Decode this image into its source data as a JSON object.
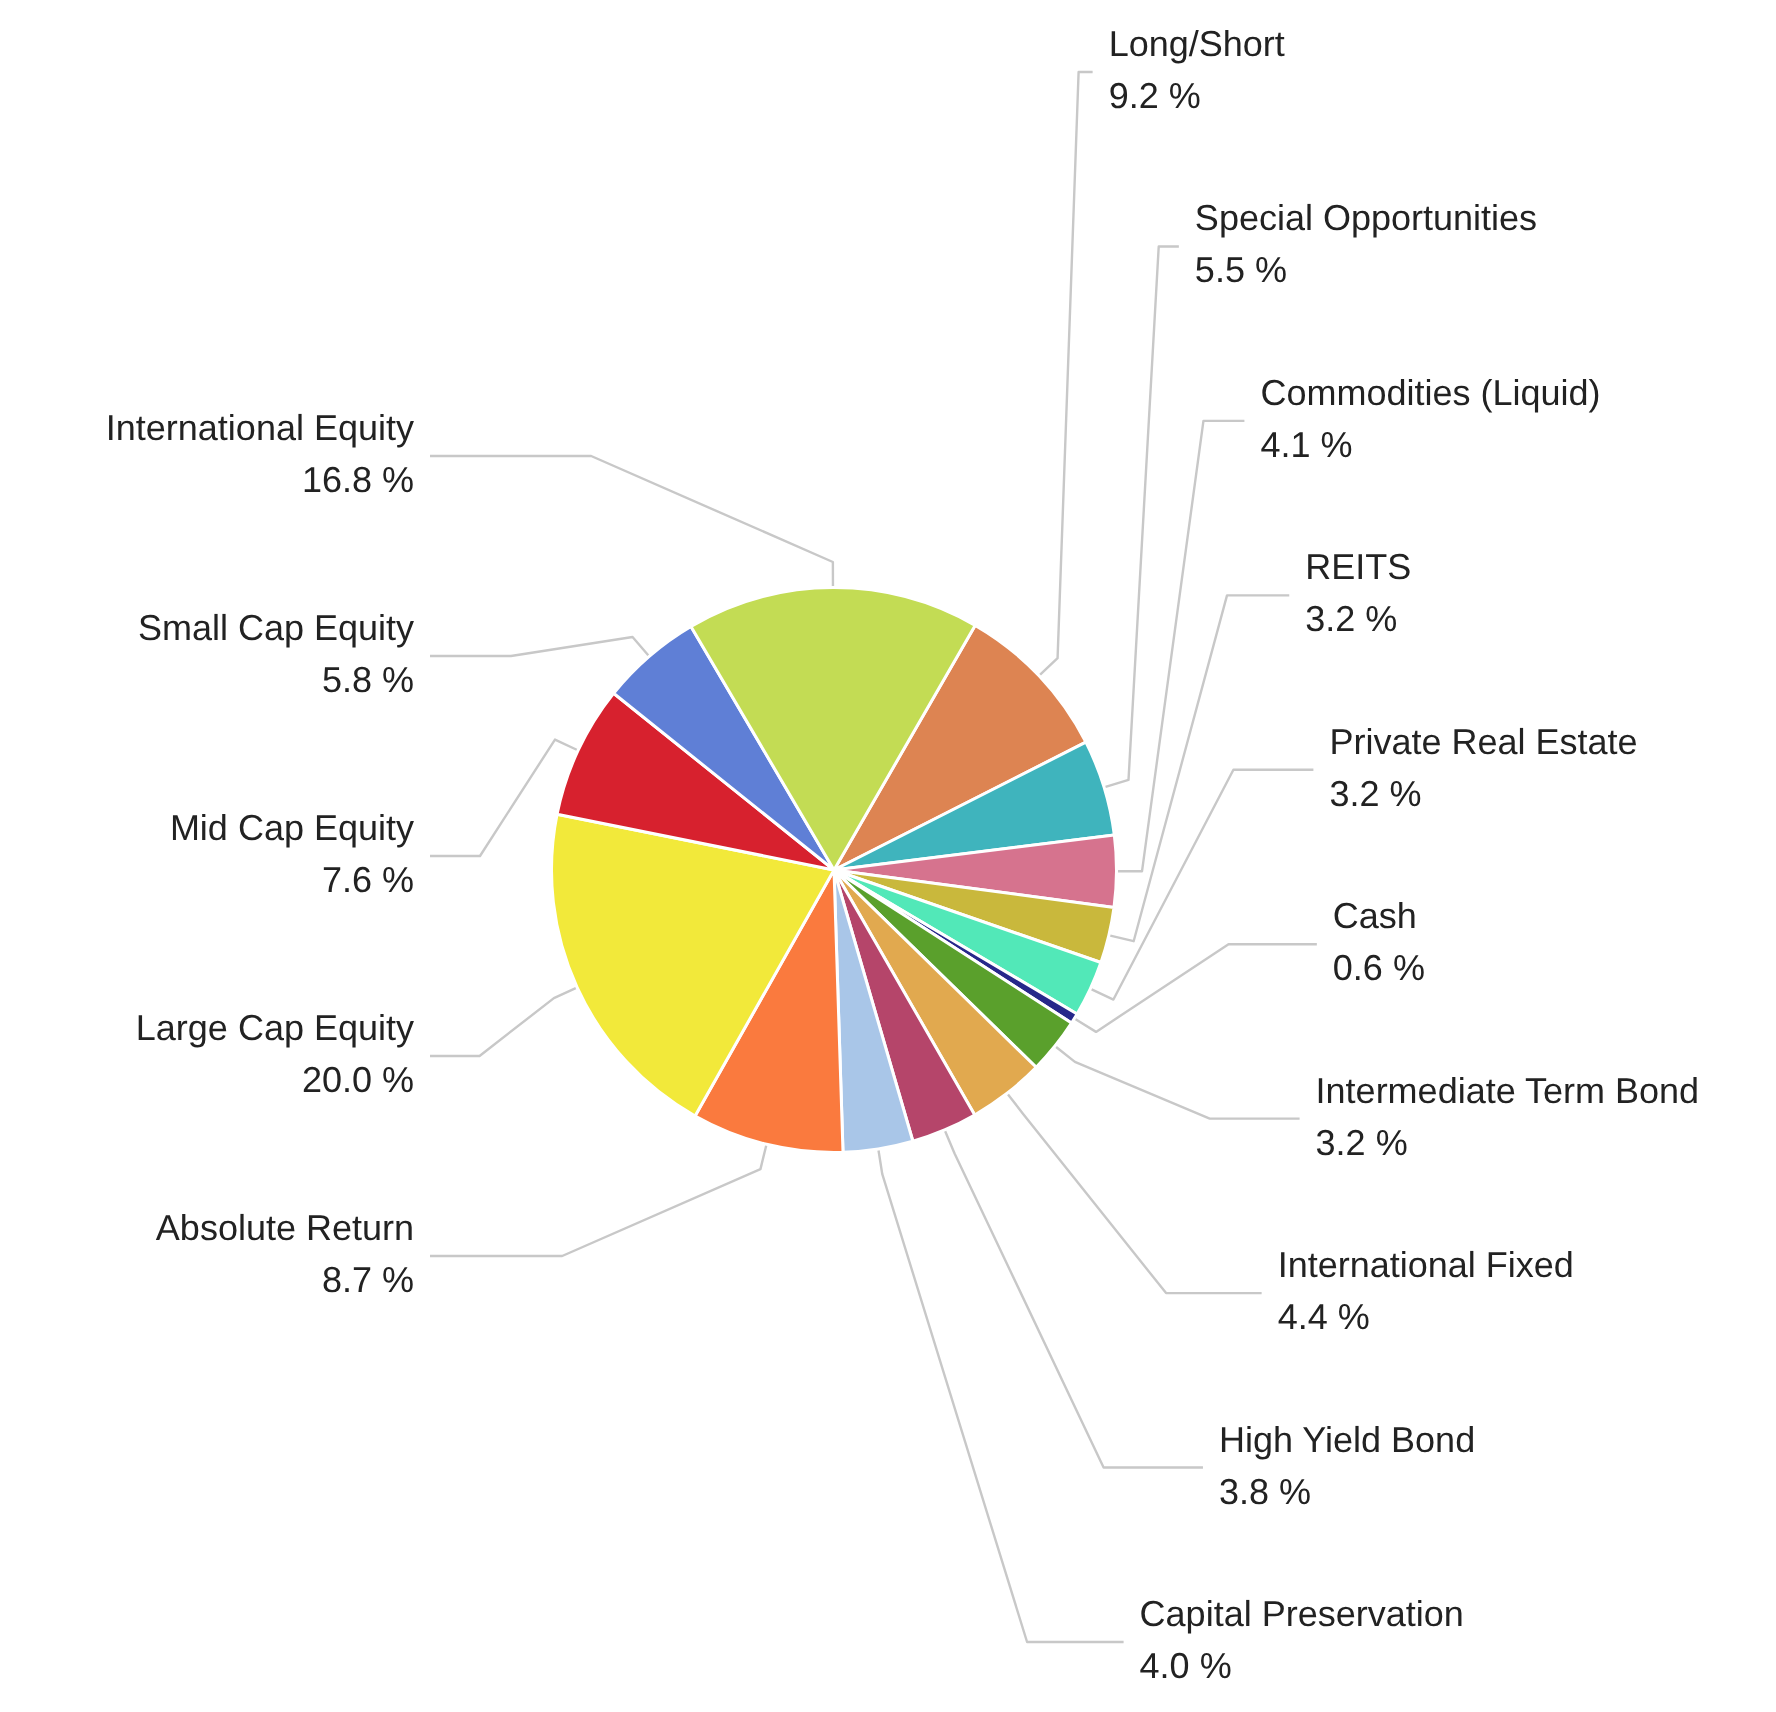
{
  "chart_data": {
    "type": "pie",
    "categories": [
      "Long/Short",
      "Special Opportunities",
      "Commodities (Liquid)",
      "REITS",
      "Private Real Estate",
      "Cash",
      "Intermediate Term Bond",
      "International Fixed",
      "High Yield Bond",
      "Capital Preservation",
      "Absolute Return",
      "Large Cap Equity",
      "Mid Cap Equity",
      "Small Cap Equity",
      "International Equity"
    ],
    "values": [
      9.2,
      5.5,
      4.1,
      3.2,
      3.2,
      0.6,
      3.2,
      4.4,
      3.8,
      4.0,
      8.7,
      20.0,
      7.6,
      5.8,
      16.8
    ],
    "value_labels": [
      "9.2 %",
      "5.5 %",
      "4.1 %",
      "3.2 %",
      "3.2 %",
      "0.6 %",
      "3.2 %",
      "4.4 %",
      "3.8 %",
      "4.0 %",
      "8.7 %",
      "20.0 %",
      "7.6 %",
      "5.8 %",
      "16.8 %"
    ],
    "colors": [
      "#dd8452",
      "#3fb4bd",
      "#d6738e",
      "#c9b83c",
      "#52e8b8",
      "#27288a",
      "#5aa02c",
      "#e1a94f",
      "#b5456a",
      "#a9c6e8",
      "#fa7a3e",
      "#f2e93a",
      "#d7212e",
      "#5f7fd6",
      "#c3dc54"
    ],
    "legend": false
  }
}
